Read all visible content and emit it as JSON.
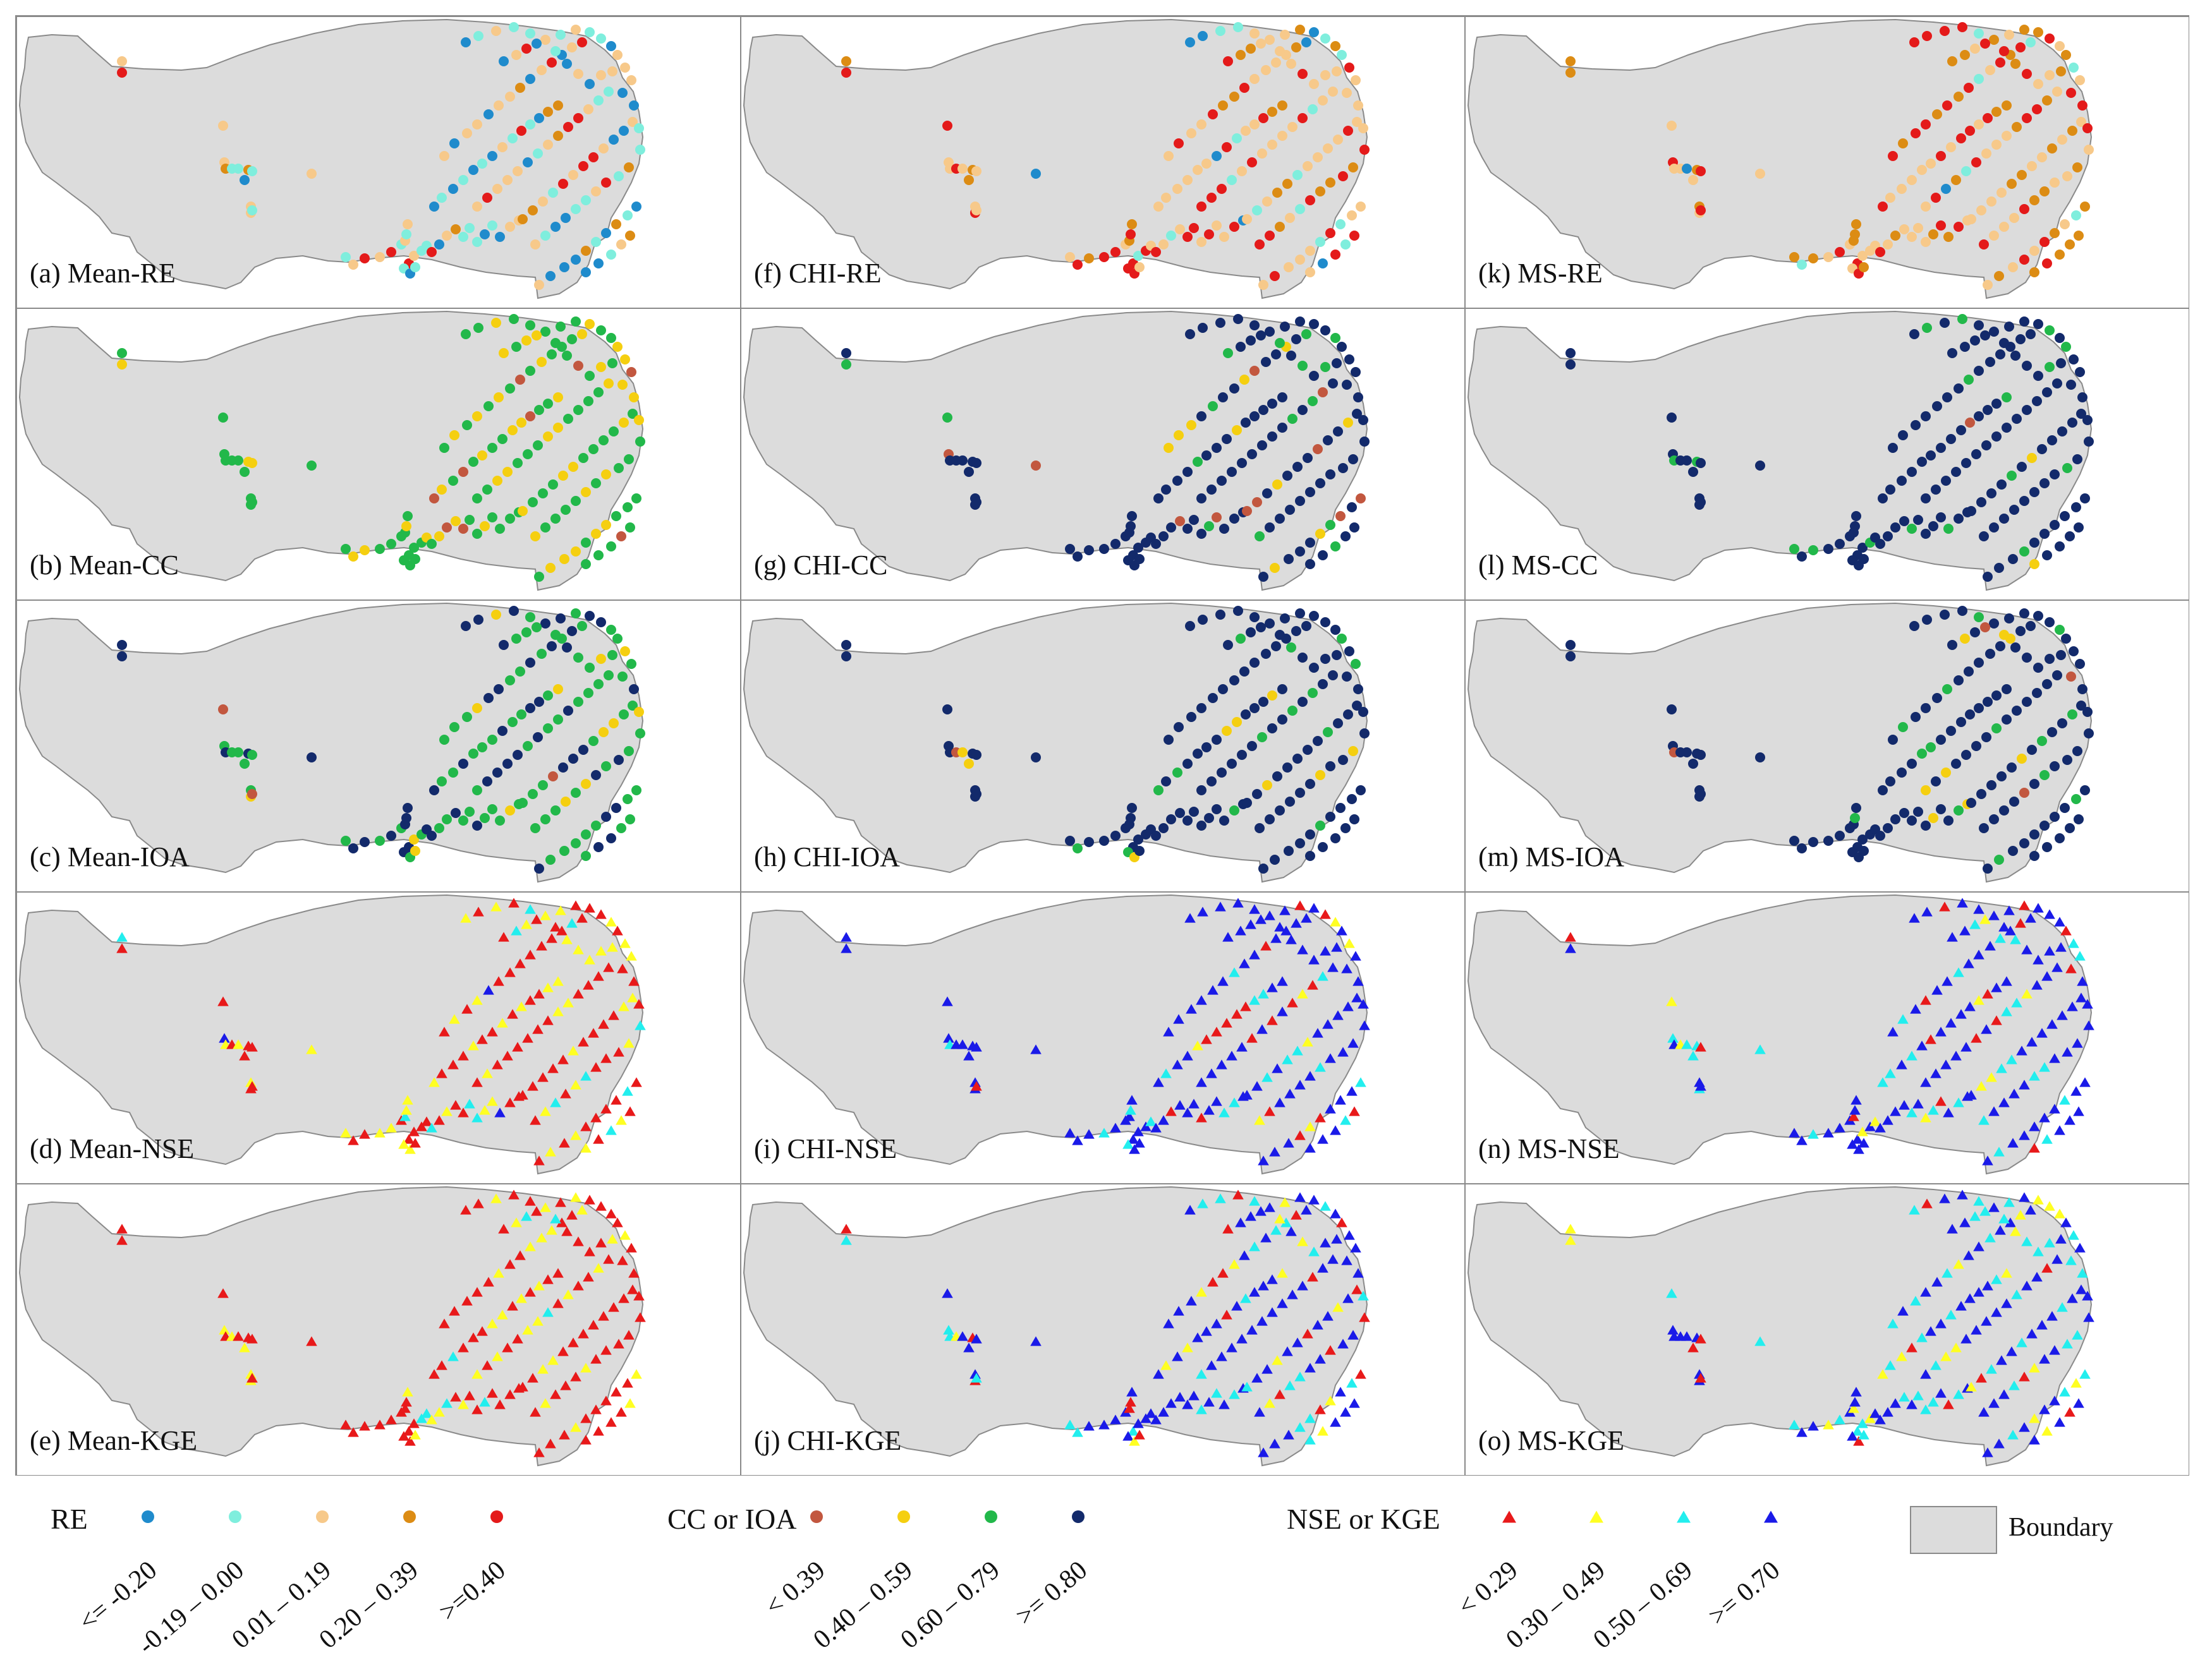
{
  "panels": [
    {
      "id": "a",
      "label": "(a) Mean-RE",
      "kind": "RE",
      "shape": "circle",
      "weights": [
        0.18,
        0.3,
        0.28,
        0.1,
        0.14
      ]
    },
    {
      "id": "f",
      "label": "(f) CHI-RE",
      "kind": "RE",
      "shape": "circle",
      "weights": [
        0.06,
        0.12,
        0.42,
        0.14,
        0.26
      ]
    },
    {
      "id": "k",
      "label": "(k) MS-RE",
      "kind": "RE",
      "shape": "circle",
      "weights": [
        0.03,
        0.07,
        0.4,
        0.22,
        0.28
      ]
    },
    {
      "id": "b",
      "label": "(b) Mean-CC",
      "kind": "CC",
      "shape": "circle",
      "weights": [
        0.06,
        0.38,
        0.56,
        0.0
      ]
    },
    {
      "id": "g",
      "label": "(g) CHI-CC",
      "kind": "CC",
      "shape": "circle",
      "weights": [
        0.05,
        0.06,
        0.12,
        0.77
      ]
    },
    {
      "id": "l",
      "label": "(l) MS-CC",
      "kind": "CC",
      "shape": "circle",
      "weights": [
        0.02,
        0.05,
        0.1,
        0.83
      ]
    },
    {
      "id": "c",
      "label": "(c) Mean-IOA",
      "kind": "CC",
      "shape": "circle",
      "weights": [
        0.03,
        0.1,
        0.52,
        0.35
      ]
    },
    {
      "id": "h",
      "label": "(h) CHI-IOA",
      "kind": "CC",
      "shape": "circle",
      "weights": [
        0.03,
        0.04,
        0.09,
        0.84
      ]
    },
    {
      "id": "m",
      "label": "(m) MS-IOA",
      "kind": "CC",
      "shape": "circle",
      "weights": [
        0.03,
        0.05,
        0.08,
        0.84
      ]
    },
    {
      "id": "d",
      "label": "(d) Mean-NSE",
      "kind": "NSE",
      "shape": "triangle",
      "weights": [
        0.6,
        0.32,
        0.06,
        0.02
      ]
    },
    {
      "id": "i",
      "label": "(i) CHI-NSE",
      "kind": "NSE",
      "shape": "triangle",
      "weights": [
        0.12,
        0.08,
        0.18,
        0.62
      ]
    },
    {
      "id": "n",
      "label": "(n) MS-NSE",
      "kind": "NSE",
      "shape": "triangle",
      "weights": [
        0.1,
        0.08,
        0.22,
        0.6
      ]
    },
    {
      "id": "e",
      "label": "(e) Mean-KGE",
      "kind": "NSE",
      "shape": "triangle",
      "weights": [
        0.65,
        0.3,
        0.05,
        0.0
      ]
    },
    {
      "id": "j",
      "label": "(j) CHI-KGE",
      "kind": "NSE",
      "shape": "triangle",
      "weights": [
        0.12,
        0.1,
        0.2,
        0.58
      ]
    },
    {
      "id": "o",
      "label": "(o) MS-KGE",
      "kind": "NSE",
      "shape": "triangle",
      "weights": [
        0.08,
        0.08,
        0.34,
        0.5
      ]
    }
  ],
  "legend": {
    "re": {
      "title": "RE",
      "shape": "circle",
      "classes": [
        {
          "label": "<= -0.20",
          "color": "#1f8bcc"
        },
        {
          "label": "-0.19 – 0.00",
          "color": "#7feedd"
        },
        {
          "label": "0.01 – 0.19",
          "color": "#f7c98a"
        },
        {
          "label": "0.20 – 0.39",
          "color": "#dc8c14"
        },
        {
          "label": ">=0.40",
          "color": "#e41a1a"
        }
      ]
    },
    "cc": {
      "title": "CC or IOA",
      "shape": "circle",
      "classes": [
        {
          "label": "< 0.39",
          "color": "#c2573f"
        },
        {
          "label": "0.40 – 0.59",
          "color": "#f5cf10"
        },
        {
          "label": "0.60 – 0.79",
          "color": "#22b84a"
        },
        {
          "label": ">= 0.80",
          "color": "#132a6b"
        }
      ]
    },
    "nse": {
      "title": "NSE or KGE",
      "shape": "triangle",
      "classes": [
        {
          "label": "< 0.29",
          "color": "#e8191a"
        },
        {
          "label": "0.30 – 0.49",
          "color": "#ffff22"
        },
        {
          "label": "0.50 – 0.69",
          "color": "#22eeee"
        },
        {
          "label": ">= 0.70",
          "color": "#1a1ae8"
        }
      ]
    },
    "boundary": {
      "label": "Boundary",
      "color": "#dcdcdc"
    }
  },
  "style": {
    "land": "#dcdcdc",
    "border": "#8a8a8a"
  }
}
